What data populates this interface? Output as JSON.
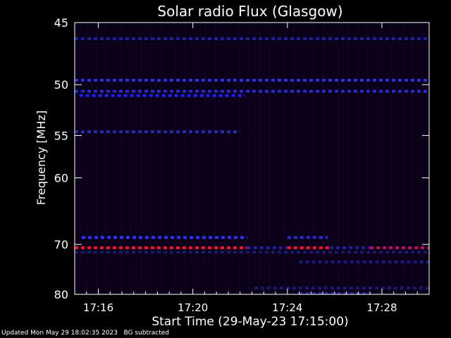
{
  "chart_data": {
    "type": "heatmap",
    "title": "Solar radio Flux (Glasgow)",
    "xlabel": "Start Time (29-May-23 17:15:00)",
    "ylabel": "Frequency [MHz]",
    "x_ticks": [
      "17:16",
      "17:20",
      "17:24",
      "17:28"
    ],
    "x_tick_minutes": [
      1,
      5,
      9,
      13
    ],
    "x_range_minutes": [
      0,
      15
    ],
    "y_ticks": [
      45,
      50,
      55,
      60,
      70,
      80
    ],
    "y_range": [
      45,
      80
    ],
    "y_scale": "reciprocal",
    "background_color": "#0a0018",
    "bands": [
      {
        "freq": 46.2,
        "start": 0,
        "end": 15,
        "color": "#2020a0"
      },
      {
        "freq": 49.6,
        "start": 0,
        "end": 15,
        "color": "#3030e0"
      },
      {
        "freq": 50.6,
        "start": 0,
        "end": 15,
        "color": "#2a2acc"
      },
      {
        "freq": 51.0,
        "start": 0.2,
        "end": 7.2,
        "color": "#2020ff"
      },
      {
        "freq": 54.6,
        "start": 0,
        "end": 7,
        "color": "#2a2ab0"
      },
      {
        "freq": 68.8,
        "start": 0.3,
        "end": 7.3,
        "color": "#3030ff"
      },
      {
        "freq": 68.8,
        "start": 9,
        "end": 10.7,
        "color": "#2a2ad0"
      },
      {
        "freq": 70.6,
        "start": 0,
        "end": 7.3,
        "color": "#ff1030"
      },
      {
        "freq": 70.6,
        "start": 9,
        "end": 10.8,
        "color": "#ff1030"
      },
      {
        "freq": 70.6,
        "start": 12.5,
        "end": 15,
        "color": "#c01060"
      },
      {
        "freq": 70.6,
        "start": 7.3,
        "end": 9,
        "color": "#2020a0"
      },
      {
        "freq": 70.6,
        "start": 10.8,
        "end": 12.5,
        "color": "#2020a0"
      },
      {
        "freq": 71.4,
        "start": 0,
        "end": 15,
        "color": "#1a1a70"
      },
      {
        "freq": 73.2,
        "start": 9.5,
        "end": 15,
        "color": "#1a1a80"
      },
      {
        "freq": 78.6,
        "start": 7.6,
        "end": 15,
        "color": "#1a1a70"
      },
      {
        "freq": 79.8,
        "start": 9.5,
        "end": 12.5,
        "color": "#2020a0"
      }
    ]
  },
  "footer": {
    "text": "Updated Mon May 29 18:02:35 2023   BG subtracted"
  }
}
